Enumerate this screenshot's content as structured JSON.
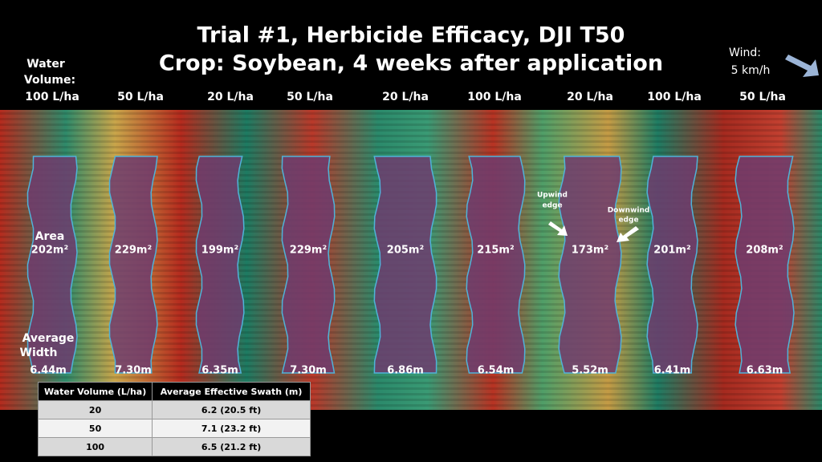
{
  "header": {
    "title_line1": "Trial #1, Herbicide Efficacy, DJI T50",
    "title_line2": "Crop: Soybean, 4 weeks after application",
    "water_volume_label_line1": "Water",
    "water_volume_label_line2": "Volume:",
    "wind_label": "Wind:",
    "wind_speed": "5 km/h"
  },
  "field": {
    "area_label": "Area",
    "width_label_line1": "Average",
    "width_label_line2": "Width",
    "upwind_label_line1": "Upwind",
    "upwind_label_line2": "edge",
    "downwind_label_line1": "Downwind",
    "downwind_label_line2": "edge",
    "swaths": [
      {
        "rate": "100 L/ha",
        "area": "202m²",
        "width": "6.44m"
      },
      {
        "rate": "50 L/ha",
        "area": "229m²",
        "width": "7.30m"
      },
      {
        "rate": "20 L/ha",
        "area": "199m²",
        "width": "6.35m"
      },
      {
        "rate": "50 L/ha",
        "area": "229m²",
        "width": "7.30m"
      },
      {
        "rate": "20 L/ha",
        "area": "205m²",
        "width": "6.86m"
      },
      {
        "rate": "100 L/ha",
        "area": "215m²",
        "width": "6.54m"
      },
      {
        "rate": "20 L/ha",
        "area": "173m²",
        "width": "5.52m"
      },
      {
        "rate": "100 L/ha",
        "area": "201m²",
        "width": "6.41m"
      },
      {
        "rate": "50 L/ha",
        "area": "208m²",
        "width": "6.63m"
      }
    ]
  },
  "table": {
    "header": [
      "Water Volume (L/ha)",
      "Average Effective Swath (m)"
    ],
    "rows": [
      [
        "20",
        "6.2 (20.5 ft)"
      ],
      [
        "50",
        "7.1 (23.2 ft)"
      ],
      [
        "100",
        "6.5 (21.2 ft)"
      ]
    ]
  }
}
